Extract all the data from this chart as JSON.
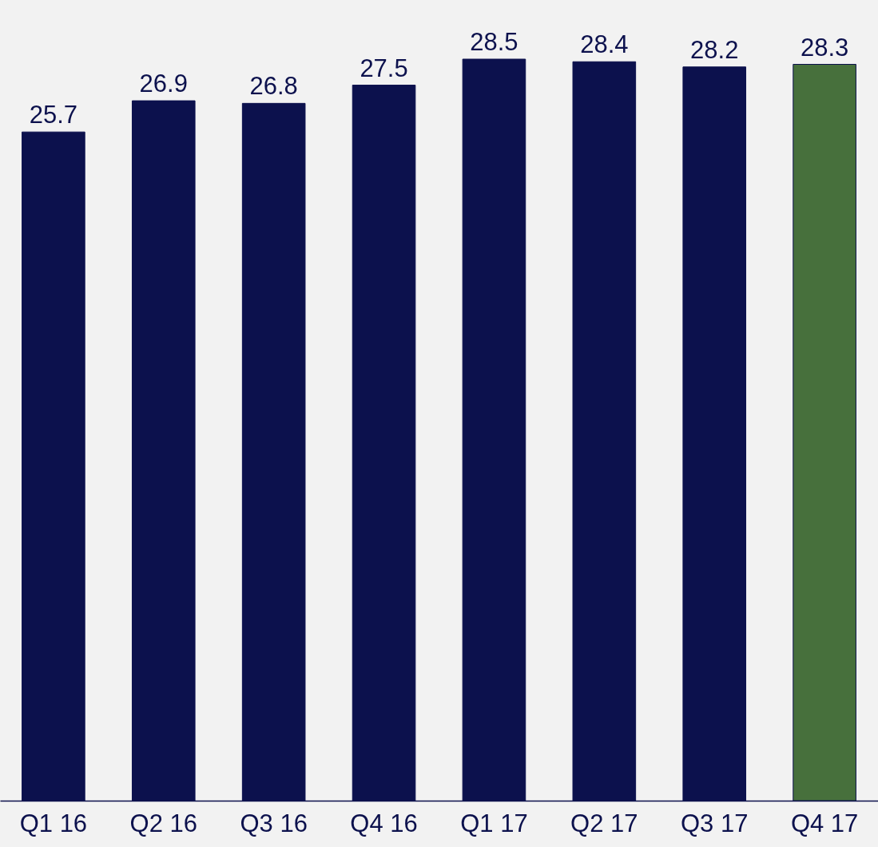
{
  "chart_data": {
    "type": "bar",
    "categories": [
      "Q1 16",
      "Q2 16",
      "Q3 16",
      "Q4 16",
      "Q1 17",
      "Q2 17",
      "Q3 17",
      "Q4 17"
    ],
    "values": [
      25.7,
      26.9,
      26.8,
      27.5,
      28.5,
      28.4,
      28.2,
      28.3
    ],
    "colors": [
      "#0c114d",
      "#0c114d",
      "#0c114d",
      "#0c114d",
      "#0c114d",
      "#0c114d",
      "#0c114d",
      "#47703c"
    ],
    "data_labels": true
  }
}
